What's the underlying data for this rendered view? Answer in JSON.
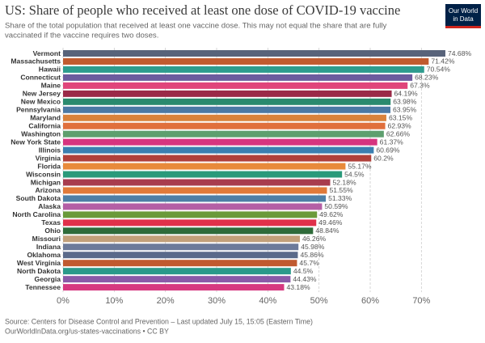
{
  "chart_data": {
    "type": "hbar",
    "title": "US: Share of people who received at least one dose of COVID-19 vaccine",
    "subtitle": [
      "Share of the total population that received at least one vaccine dose. This may not equal the share that are fully",
      "vaccinated if the vaccine requires two doses."
    ],
    "categories": [
      "Vermont",
      "Massachusetts",
      "Hawaii",
      "Connecticut",
      "Maine",
      "New Jersey",
      "New Mexico",
      "Pennsylvania",
      "Maryland",
      "California",
      "Washington",
      "New York State",
      "Illinois",
      "Virginia",
      "Florida",
      "Wisconsin",
      "Michigan",
      "Arizona",
      "South Dakota",
      "Alaska",
      "North Carolina",
      "Texas",
      "Ohio",
      "Missouri",
      "Indiana",
      "Oklahoma",
      "West Virginia",
      "North Dakota",
      "Georgia",
      "Tennessee"
    ],
    "values": [
      74.68,
      71.42,
      70.54,
      68.23,
      67.3,
      64.19,
      63.98,
      63.95,
      63.15,
      62.93,
      62.66,
      61.37,
      60.69,
      60.2,
      55.17,
      54.5,
      52.18,
      51.55,
      51.33,
      50.59,
      49.62,
      49.46,
      48.84,
      46.26,
      45.98,
      45.86,
      45.7,
      44.5,
      44.43,
      43.18
    ],
    "value_labels": [
      "74.68%",
      "71.42%",
      "70.54%",
      "68.23%",
      "67.3%",
      "64.19%",
      "63.98%",
      "63.95%",
      "63.15%",
      "62.93%",
      "62.66%",
      "61.37%",
      "60.69%",
      "60.2%",
      "55.17%",
      "54.5%",
      "52.18%",
      "51.55%",
      "51.33%",
      "50.59%",
      "49.62%",
      "49.46%",
      "48.84%",
      "46.26%",
      "45.98%",
      "45.86%",
      "45.7%",
      "44.5%",
      "44.43%",
      "43.18%"
    ],
    "colors": [
      "#58637a",
      "#c15b2f",
      "#2e9c8e",
      "#6c5b9e",
      "#e0457b",
      "#9a2a48",
      "#2a8a6e",
      "#4b79a4",
      "#d9823b",
      "#e06f3c",
      "#5e9f6e",
      "#d6347f",
      "#3b7fb0",
      "#b0403a",
      "#e88a3a",
      "#2a9a7a",
      "#a83c4e",
      "#e07a3a",
      "#4e7fa6",
      "#b45fa5",
      "#6a9a3a",
      "#e0304a",
      "#2e6b3a",
      "#c2a07a",
      "#6c7a9a",
      "#5a6a8a",
      "#c05a30",
      "#2a9a8a",
      "#8a5aa8",
      "#d63880"
    ],
    "xlim": [
      0,
      75
    ],
    "xticks": [
      {
        "value": 0,
        "label": "0%"
      },
      {
        "value": 10,
        "label": "10%"
      },
      {
        "value": 20,
        "label": "20%"
      },
      {
        "value": 30,
        "label": "30%"
      },
      {
        "value": 40,
        "label": "40%"
      },
      {
        "value": 50,
        "label": "50%"
      },
      {
        "value": 60,
        "label": "60%"
      },
      {
        "value": 70,
        "label": "70%"
      }
    ],
    "grid": true,
    "source": "Source: Centers for Disease Control and Prevention – Last updated July 15, 15:05 (Eastern Time)",
    "footer": "OurWorldInData.org/us-states-vaccinations • CC BY"
  },
  "logo": [
    "Our World",
    "in Data"
  ]
}
